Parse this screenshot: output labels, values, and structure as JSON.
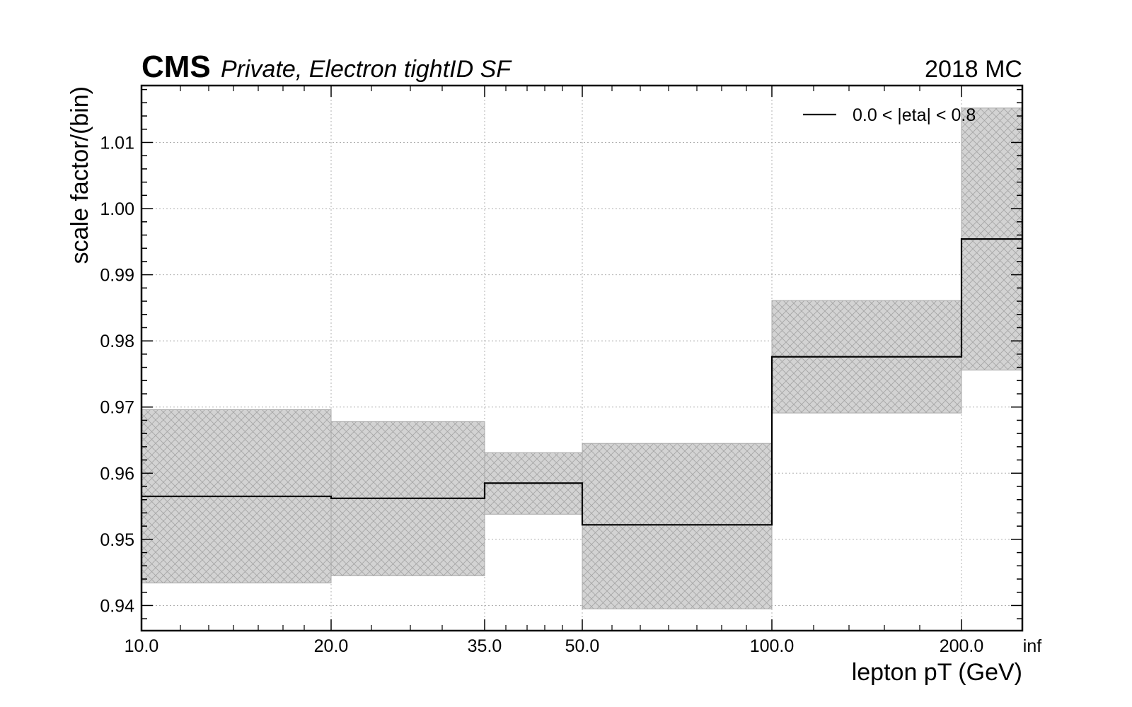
{
  "header": {
    "experiment": "CMS",
    "subtitle": "Private, Electron tightID SF",
    "right_label": "2018 MC"
  },
  "chart_data": {
    "type": "step-histogram",
    "xlabel": "lepton pT (GeV)",
    "ylabel": "scale factor/(bin)",
    "x_bin_edges": [
      "10.0",
      "20.0",
      "35.0",
      "50.0",
      "100.0",
      "200.0",
      "inf"
    ],
    "ylim": [
      0.9362,
      1.0186
    ],
    "yticks": [
      "0.94",
      "0.95",
      "0.96",
      "0.97",
      "0.98",
      "0.99",
      "1.00",
      "1.01"
    ],
    "grid": true,
    "legend_position": "top-right",
    "series": [
      {
        "name": "0.0 < |eta| < 0.8",
        "color": "#000000",
        "values": [
          0.9565,
          0.9562,
          0.9585,
          0.9522,
          0.9776,
          0.9954
        ],
        "band_low": [
          0.9434,
          0.9445,
          0.9538,
          0.9395,
          0.9691,
          0.9756
        ],
        "band_high": [
          0.9696,
          0.9678,
          0.9631,
          0.9645,
          0.9861,
          1.0152
        ],
        "band_color": "#d3d3d3"
      }
    ]
  }
}
